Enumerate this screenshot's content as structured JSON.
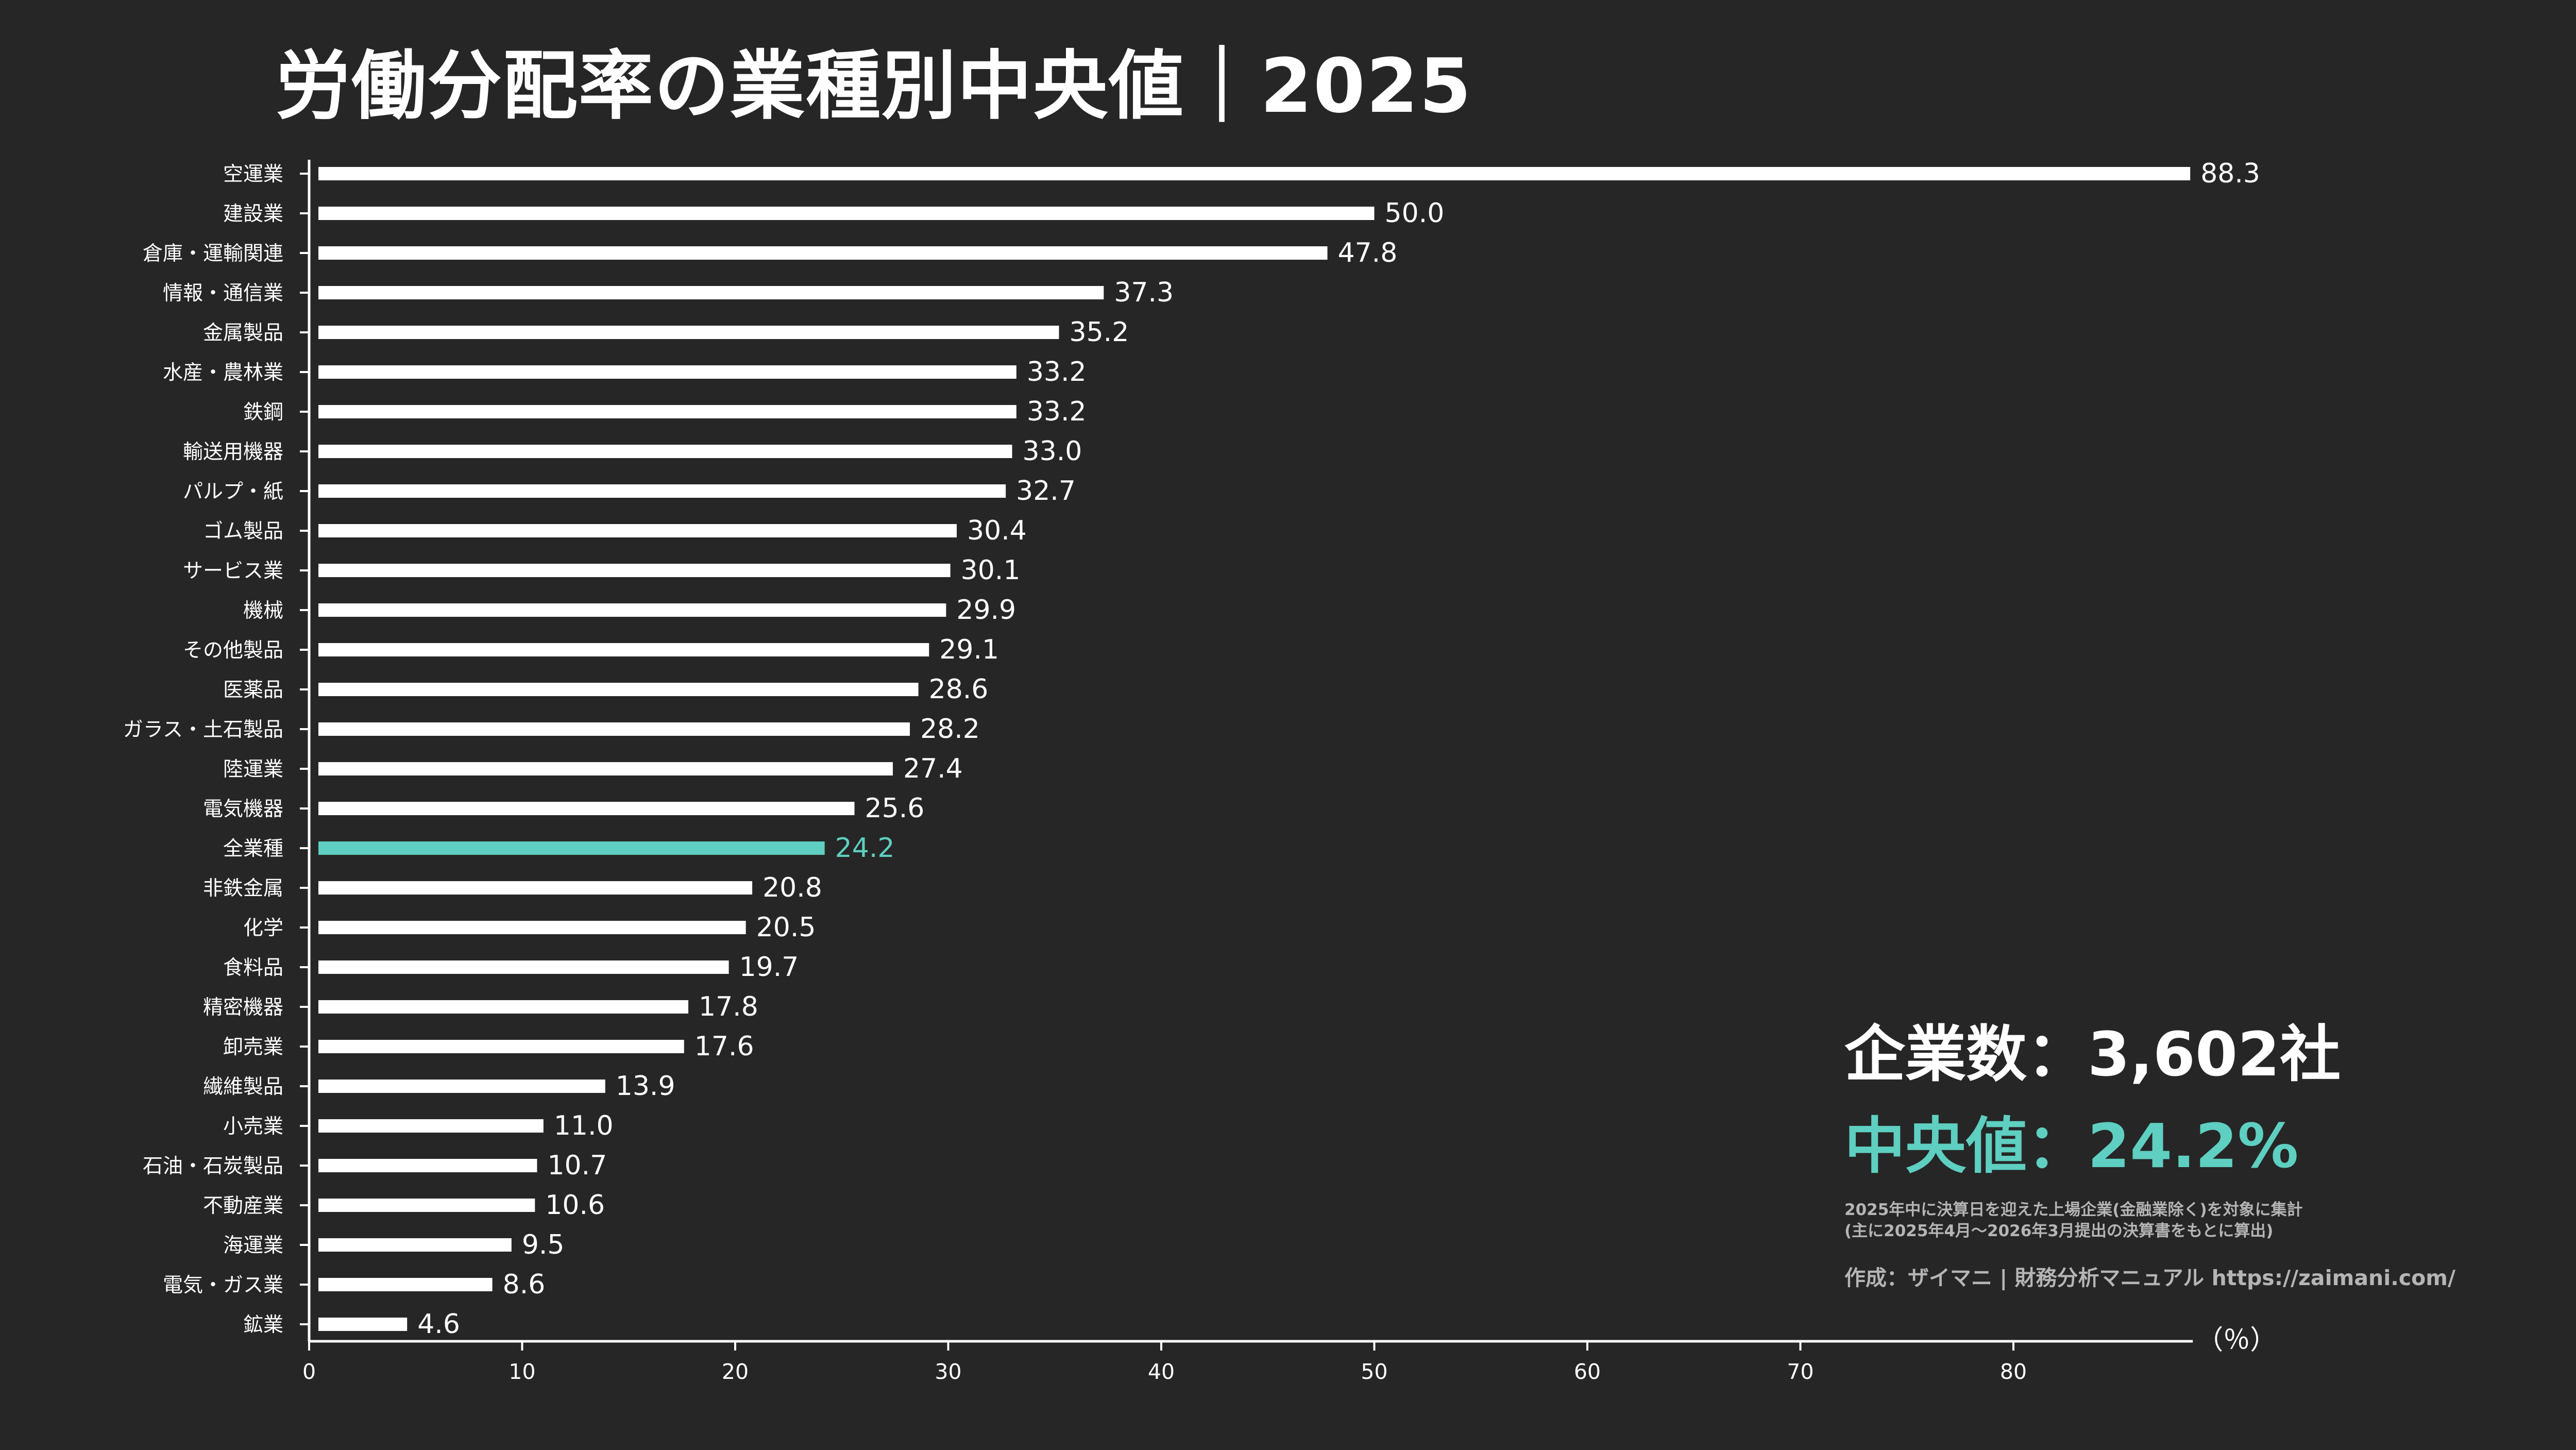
{
  "title": "労働分配率の業種別中央値｜2025",
  "summary": {
    "company_count": "企業数：3,602社",
    "median": "中央値：24.2%",
    "note_line1": "2025年中に決算日を迎えた上場企業(金融業除く)を対象に集計",
    "note_line2": "(主に2025年4月～2026年3月提出の決算書をもとに算出)",
    "credit": "作成：ザイマニ | 財務分析マニュアル https://zaimani.com/"
  },
  "colors": {
    "background": "#262626",
    "bar": "#ffffff",
    "highlight": "#5ecfc0",
    "axis": "#ffffff",
    "note": "#b5b5b5"
  },
  "chart_data": {
    "type": "bar",
    "orientation": "horizontal",
    "title": "労働分配率の業種別中央値｜2025",
    "xlabel": "（％）",
    "ylabel": "",
    "xlim": [
      0,
      88.3
    ],
    "x_ticks": [
      0,
      10,
      20,
      30,
      40,
      50,
      60,
      70,
      80
    ],
    "grid": false,
    "highlight_category": "全業種",
    "categories": [
      "空運業",
      "建設業",
      "倉庫・運輸関連",
      "情報・通信業",
      "金属製品",
      "水産・農林業",
      "鉄鋼",
      "輸送用機器",
      "パルプ・紙",
      "ゴム製品",
      "サービス業",
      "機械",
      "その他製品",
      "医薬品",
      "ガラス・土石製品",
      "陸運業",
      "電気機器",
      "全業種",
      "非鉄金属",
      "化学",
      "食料品",
      "精密機器",
      "卸売業",
      "繊維製品",
      "小売業",
      "石油・石炭製品",
      "不動産業",
      "海運業",
      "電気・ガス業",
      "鉱業"
    ],
    "values": [
      88.3,
      50.0,
      47.8,
      37.3,
      35.2,
      33.2,
      33.2,
      33.0,
      32.7,
      30.4,
      30.1,
      29.9,
      29.1,
      28.6,
      28.2,
      27.4,
      25.6,
      24.2,
      20.8,
      20.5,
      19.7,
      17.8,
      17.6,
      13.9,
      11.0,
      10.7,
      10.6,
      9.5,
      8.6,
      4.6
    ],
    "value_labels": [
      "88.3",
      "50.0",
      "47.8",
      "37.3",
      "35.2",
      "33.2",
      "33.2",
      "33.0",
      "32.7",
      "30.4",
      "30.1",
      "29.9",
      "29.1",
      "28.6",
      "28.2",
      "27.4",
      "25.6",
      "24.2",
      "20.8",
      "20.5",
      "19.7",
      "17.8",
      "17.6",
      "13.9",
      "11.0",
      "10.7",
      "10.6",
      "9.5",
      "8.6",
      "4.6"
    ]
  }
}
